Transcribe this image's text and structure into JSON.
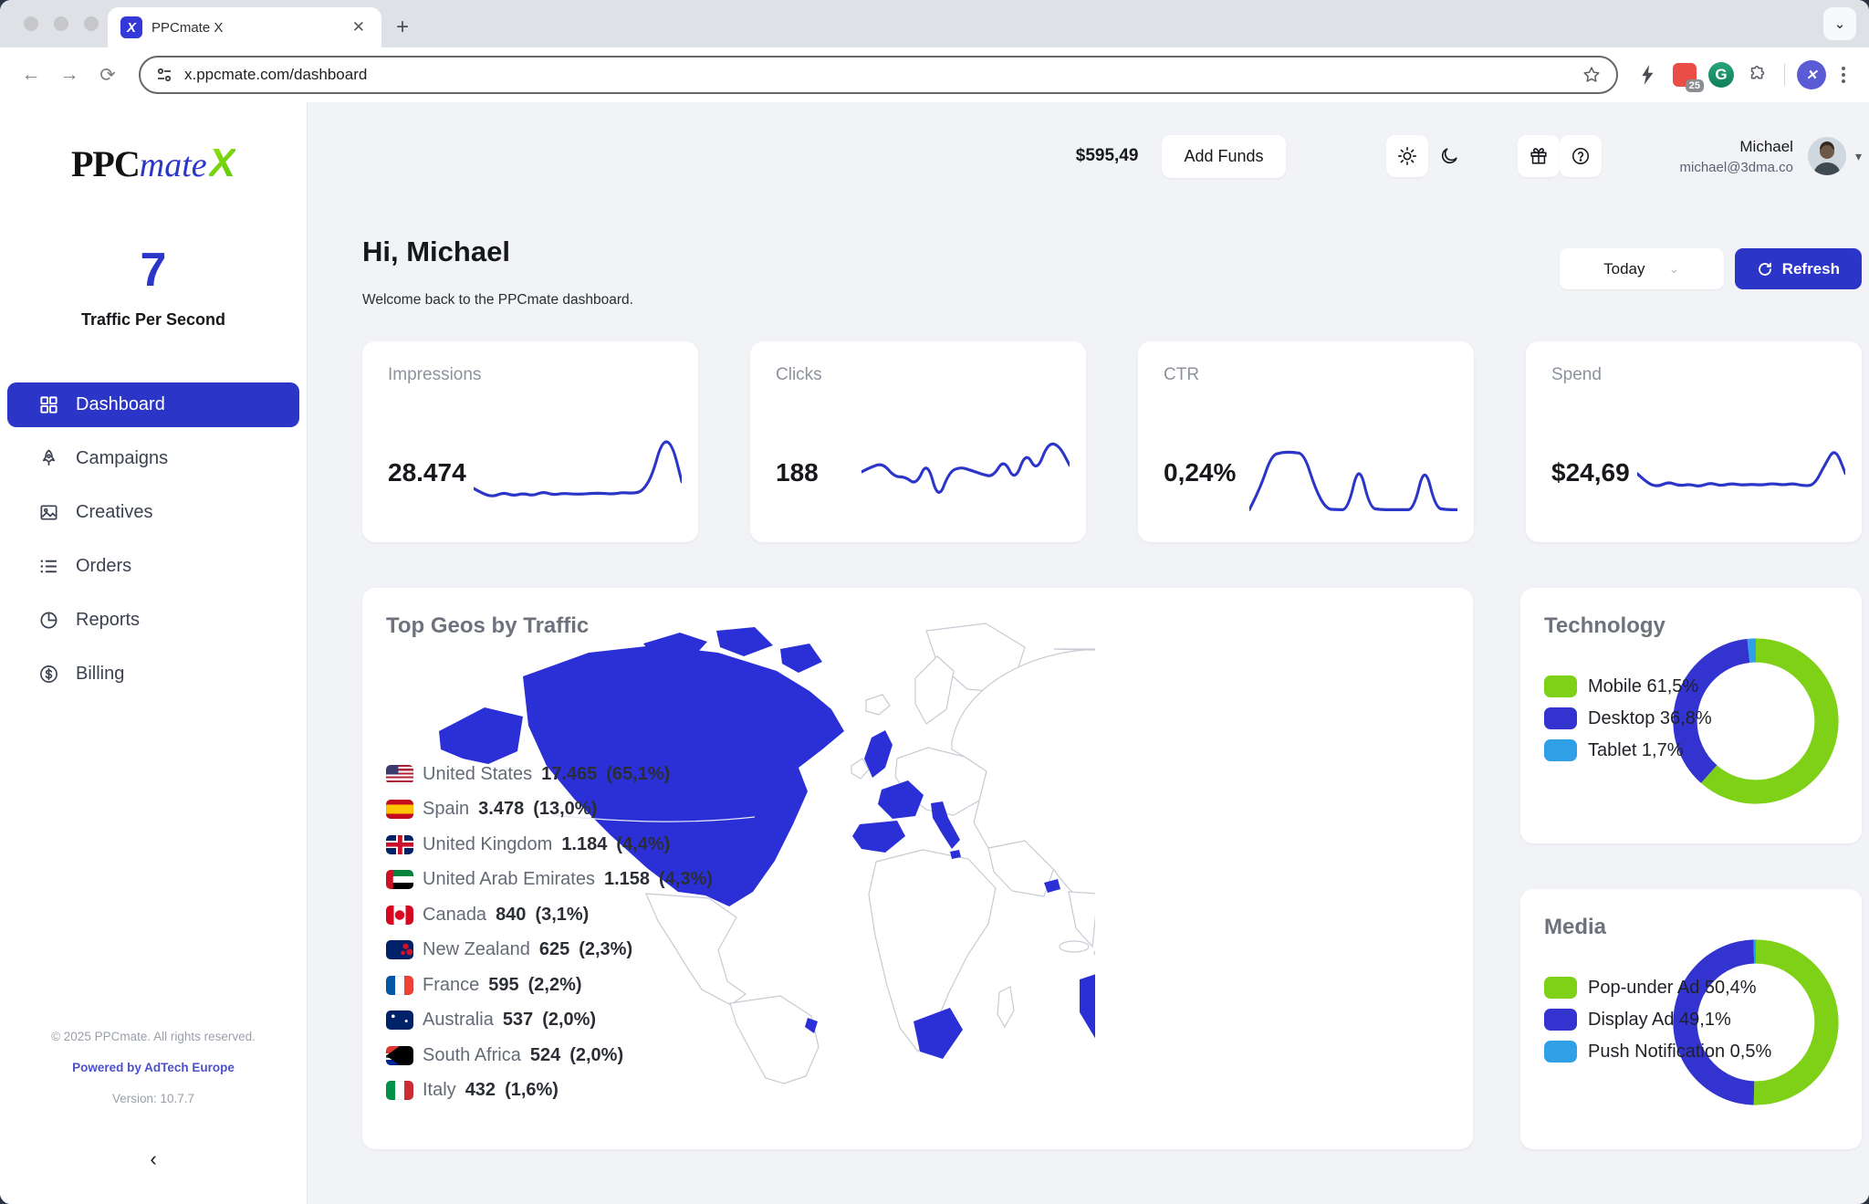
{
  "colors": {
    "accent": "#2b35c8",
    "map_blue": "#2b2fd6",
    "lime": "#7ed117",
    "indigo": "#3333cf",
    "sky": "#2f9fe8"
  },
  "browser": {
    "tab_title": "PPCmate X",
    "favicon_letter": "X",
    "url": "x.ppcmate.com/dashboard",
    "ext_badge": "25",
    "ext_g_letter": "G"
  },
  "header": {
    "balance": "$595,49",
    "add_funds_label": "Add Funds",
    "user_name": "Michael",
    "user_email": "michael@3dma.co"
  },
  "sidebar": {
    "logo_ppc": "PPC",
    "logo_mate": "mate",
    "logo_x": "X",
    "tps_value": "7",
    "tps_label": "Traffic Per Second",
    "items": [
      {
        "label": "Dashboard",
        "icon": "grid",
        "active": true
      },
      {
        "label": "Campaigns",
        "icon": "rocket",
        "active": false
      },
      {
        "label": "Creatives",
        "icon": "image",
        "active": false
      },
      {
        "label": "Orders",
        "icon": "list",
        "active": false
      },
      {
        "label": "Reports",
        "icon": "pie",
        "active": false
      },
      {
        "label": "Billing",
        "icon": "dollar",
        "active": false
      }
    ],
    "footer_copyright": "© 2025 PPCmate. All rights reserved.",
    "footer_powered": "Powered by AdTech Europe",
    "footer_version": "Version: 10.7.7"
  },
  "main": {
    "greeting": "Hi, Michael",
    "welcome": "Welcome back to the PPCmate dashboard.",
    "range_label": "Today",
    "refresh_label": "Refresh"
  },
  "chart_data": {
    "stats": [
      {
        "type": "line",
        "label": "Impressions",
        "value": "28.474",
        "values": [
          30,
          23,
          20,
          25,
          21,
          24,
          21,
          26,
          22,
          24,
          23,
          23,
          24,
          24,
          23,
          25,
          24,
          26,
          45,
          88,
          85,
          38
        ]
      },
      {
        "type": "line",
        "label": "Clicks",
        "value": "188",
        "values": [
          50,
          57,
          60,
          44,
          44,
          34,
          64,
          15,
          50,
          56,
          52,
          47,
          44,
          66,
          38,
          75,
          50,
          85,
          83,
          58
        ]
      },
      {
        "type": "line",
        "label": "CTR",
        "value": "0,24%",
        "values": [
          4,
          30,
          70,
          74,
          74,
          72,
          30,
          5,
          4,
          4,
          62,
          6,
          4,
          4,
          4,
          4,
          60,
          6,
          4,
          4
        ]
      },
      {
        "type": "line",
        "label": "Spend",
        "value": "$24,69",
        "values": [
          48,
          36,
          32,
          38,
          33,
          35,
          32,
          37,
          33,
          36,
          34,
          35,
          34,
          36,
          34,
          36,
          33,
          34,
          58,
          80,
          48
        ]
      }
    ],
    "geo": {
      "type": "map-table",
      "title": "Top Geos by Traffic",
      "rows": [
        {
          "flag": "us",
          "country": "United States",
          "value": "17.465",
          "share": "(65,1%)"
        },
        {
          "flag": "es",
          "country": "Spain",
          "value": "3.478",
          "share": "(13,0%)"
        },
        {
          "flag": "gb",
          "country": "United Kingdom",
          "value": "1.184",
          "share": "(4,4%)"
        },
        {
          "flag": "ae",
          "country": "United Arab Emirates",
          "value": "1.158",
          "share": "(4,3%)"
        },
        {
          "flag": "ca",
          "country": "Canada",
          "value": "840",
          "share": "(3,1%)"
        },
        {
          "flag": "nz",
          "country": "New Zealand",
          "value": "625",
          "share": "(2,3%)"
        },
        {
          "flag": "fr",
          "country": "France",
          "value": "595",
          "share": "(2,2%)"
        },
        {
          "flag": "au",
          "country": "Australia",
          "value": "537",
          "share": "(2,0%)"
        },
        {
          "flag": "za",
          "country": "South Africa",
          "value": "524",
          "share": "(2,0%)"
        },
        {
          "flag": "it",
          "country": "Italy",
          "value": "432",
          "share": "(1,6%)"
        }
      ]
    },
    "technology": {
      "type": "pie",
      "title": "Technology",
      "slices": [
        {
          "label": "Mobile",
          "pct": 61.5,
          "display": "61,5%",
          "color": "lime"
        },
        {
          "label": "Desktop",
          "pct": 36.8,
          "display": "36,8%",
          "color": "indigo"
        },
        {
          "label": "Tablet",
          "pct": 1.7,
          "display": "1,7%",
          "color": "sky"
        }
      ]
    },
    "media": {
      "type": "pie",
      "title": "Media",
      "slices": [
        {
          "label": "Pop-under Ad",
          "pct": 50.4,
          "display": "50,4%",
          "color": "lime"
        },
        {
          "label": "Display Ad",
          "pct": 49.1,
          "display": "49,1%",
          "color": "indigo"
        },
        {
          "label": "Push Notification",
          "pct": 0.5,
          "display": "0,5%",
          "color": "sky"
        }
      ]
    }
  }
}
